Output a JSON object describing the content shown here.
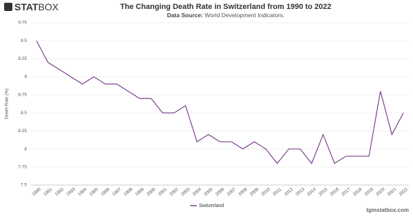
{
  "chart_data": {
    "type": "line",
    "title": "The Changing Death Rate in Switzerland from 1990 to 2022",
    "subtitle_label": "Data Source:",
    "subtitle": "World Development Indicators.",
    "y_label": "Death Rate (%)",
    "categories": [
      "1990",
      "1991",
      "1992",
      "1993",
      "1994",
      "1995",
      "1996",
      "1997",
      "1998",
      "1999",
      "2000",
      "2001",
      "2002",
      "2003",
      "2004",
      "2005",
      "2006",
      "2007",
      "2008",
      "2009",
      "2010",
      "2011",
      "2012",
      "2013",
      "2014",
      "2015",
      "2016",
      "2017",
      "2018",
      "2019",
      "2020",
      "2021",
      "2022"
    ],
    "series": [
      {
        "name": "Switzerland",
        "color": "#7b3f8c",
        "values": [
          9.5,
          9.2,
          9.1,
          9.0,
          8.9,
          9.0,
          8.9,
          8.9,
          8.8,
          8.7,
          8.7,
          8.5,
          8.5,
          8.6,
          8.1,
          8.2,
          8.1,
          8.1,
          8.0,
          8.1,
          8.0,
          7.8,
          8.0,
          8.0,
          7.8,
          8.2,
          7.8,
          7.9,
          7.9,
          7.9,
          8.8,
          8.2,
          8.5
        ]
      }
    ],
    "ylim": [
      7.5,
      9.75
    ],
    "yticks": [
      7.5,
      7.75,
      8,
      8.25,
      8.5,
      8.75,
      9,
      9.25,
      9.5,
      9.75
    ],
    "grid": true,
    "legend": "bottom"
  },
  "logo": {
    "bold": "STAT",
    "light": "BOX"
  },
  "footer": "tgmstatbox.com"
}
